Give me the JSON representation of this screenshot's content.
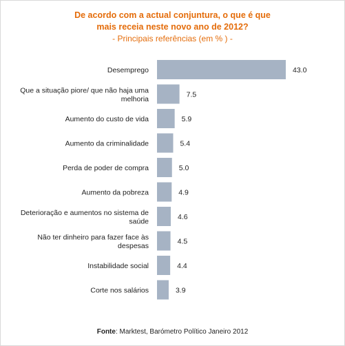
{
  "chart_data": {
    "type": "bar",
    "orientation": "horizontal",
    "title": "De acordo com a actual conjuntura, o que é que mais receia neste novo ano de 2012?",
    "subtitle": "- Principais referências (em % ) -",
    "categories": [
      "Desemprego",
      "Que a situação piore/ que não haja uma melhoria",
      "Aumento do custo de vida",
      "Aumento da criminalidade",
      "Perda de poder de compra",
      "Aumento da pobreza",
      "Deterioração e aumentos no sistema de saúde",
      "Não ter dinheiro para fazer face às despesas",
      "Instabilidade social",
      "Corte nos salários"
    ],
    "category_lines": [
      [
        "Desemprego"
      ],
      [
        "Que a situação piore/ que não haja uma",
        "melhoria"
      ],
      [
        "Aumento do custo de vida"
      ],
      [
        "Aumento da criminalidade"
      ],
      [
        "Perda de poder de compra"
      ],
      [
        "Aumento da pobreza"
      ],
      [
        "Deterioração e aumentos no sistema de",
        "saúde"
      ],
      [
        "Não ter dinheiro para fazer face às",
        "despesas"
      ],
      [
        "Instabilidade social"
      ],
      [
        "Corte nos salários"
      ]
    ],
    "values": [
      43.0,
      7.5,
      5.9,
      5.4,
      5.0,
      4.9,
      4.6,
      4.5,
      4.4,
      3.9
    ],
    "value_labels": [
      "43.0",
      "7.5",
      "5.9",
      "5.4",
      "5.0",
      "4.9",
      "4.6",
      "4.5",
      "4.4",
      "3.9"
    ],
    "xlim": [
      0,
      43
    ],
    "grid": false,
    "legend": "none",
    "bar_color": "#a6b3c4",
    "title_color": "#e46c0a"
  },
  "source": {
    "label": "Fonte",
    "text": ": Marktest, Barómetro Político Janeiro 2012"
  }
}
